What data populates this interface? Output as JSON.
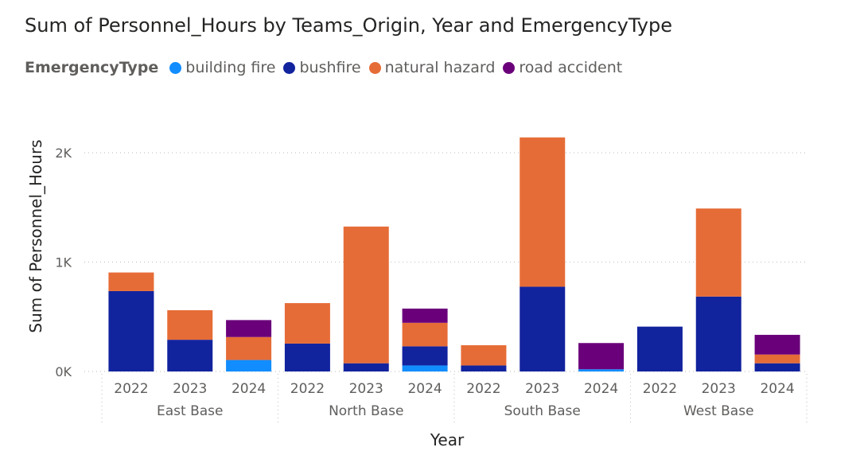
{
  "title": "Sum of Personnel_Hours by Teams_Origin, Year and EmergencyType",
  "legend": {
    "title": "EmergencyType",
    "items": [
      {
        "label": "building fire",
        "color": "#118DFF"
      },
      {
        "label": "bushfire",
        "color": "#12239E"
      },
      {
        "label": "natural hazard",
        "color": "#E66C37"
      },
      {
        "label": "road accident",
        "color": "#6B007B"
      }
    ]
  },
  "chart_data": {
    "type": "bar",
    "stacked": true,
    "title": "Sum of Personnel_Hours by Teams_Origin, Year and EmergencyType",
    "xlabel": "Year",
    "ylabel": "Sum of Personnel_Hours",
    "ylim": [
      0,
      2400
    ],
    "yticks": [
      0,
      1000,
      2000
    ],
    "ytick_labels": [
      "0K",
      "1K",
      "2K"
    ],
    "grid": true,
    "legend_position": "top-left",
    "groups": [
      "East Base",
      "North Base",
      "South Base",
      "West Base"
    ],
    "categories": [
      "2022",
      "2023",
      "2024",
      "2022",
      "2023",
      "2024",
      "2022",
      "2023",
      "2024",
      "2022",
      "2023",
      "2024"
    ],
    "series": [
      {
        "name": "building fire",
        "color": "#118DFF",
        "values": [
          0,
          0,
          105,
          0,
          0,
          55,
          0,
          0,
          20,
          0,
          0,
          0
        ]
      },
      {
        "name": "bushfire",
        "color": "#12239E",
        "values": [
          735,
          290,
          0,
          255,
          75,
          175,
          55,
          775,
          0,
          410,
          685,
          75
        ]
      },
      {
        "name": "natural hazard",
        "color": "#E66C37",
        "values": [
          170,
          270,
          210,
          370,
          1250,
          215,
          185,
          1365,
          0,
          0,
          805,
          80
        ]
      },
      {
        "name": "road accident",
        "color": "#6B007B",
        "values": [
          0,
          0,
          155,
          0,
          0,
          130,
          0,
          0,
          240,
          0,
          0,
          180
        ]
      }
    ]
  }
}
